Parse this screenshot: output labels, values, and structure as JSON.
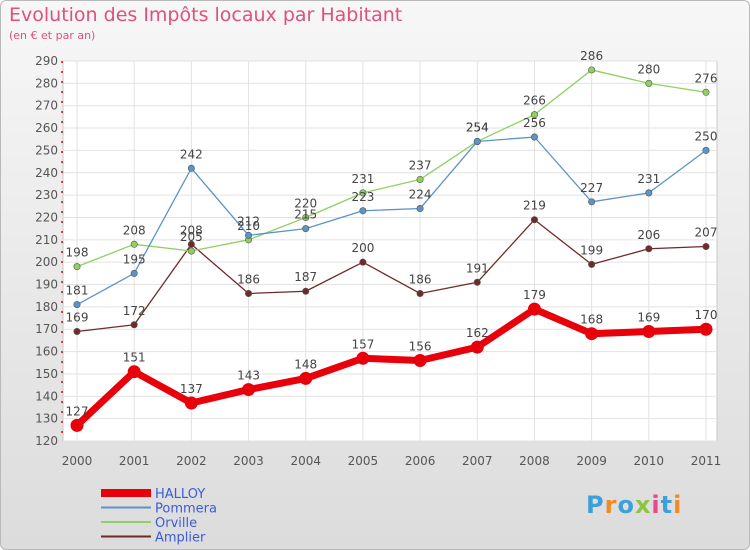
{
  "chart_data": {
    "type": "line",
    "title": "Evolution des Impôts locaux par Habitant",
    "subtitle": "(en € et par an)",
    "categories": [
      "2000",
      "2001",
      "2002",
      "2003",
      "2004",
      "2005",
      "2006",
      "2007",
      "2008",
      "2009",
      "2010",
      "2011"
    ],
    "ylim": [
      120,
      290
    ],
    "yticks": [
      120,
      130,
      140,
      150,
      160,
      170,
      180,
      190,
      200,
      210,
      220,
      230,
      240,
      250,
      260,
      270,
      280,
      290
    ],
    "grid": true,
    "legend_position": "bottom-left",
    "series": [
      {
        "name": "HALLOY",
        "color": "#e8000a",
        "values": [
          127,
          151,
          137,
          143,
          148,
          157,
          156,
          162,
          179,
          168,
          169,
          170
        ]
      },
      {
        "name": "Pommera",
        "color": "#5c94c6",
        "values": [
          181,
          195,
          242,
          212,
          215,
          223,
          224,
          254,
          256,
          227,
          231,
          250
        ]
      },
      {
        "name": "Orville",
        "color": "#8fd061",
        "values": [
          198,
          208,
          205,
          210,
          220,
          231,
          237,
          254,
          266,
          286,
          280,
          276
        ]
      },
      {
        "name": "Amplier",
        "color": "#702a2a",
        "values": [
          169,
          172,
          208,
          186,
          187,
          200,
          186,
          191,
          219,
          199,
          206,
          207
        ]
      }
    ]
  },
  "logo": {
    "text": "Proxiti",
    "colors": [
      "#3ea0d8",
      "#f08a24",
      "#3ea0d8",
      "#8cc63f",
      "#e84a85",
      "#3ea0d8",
      "#f08a24"
    ]
  }
}
